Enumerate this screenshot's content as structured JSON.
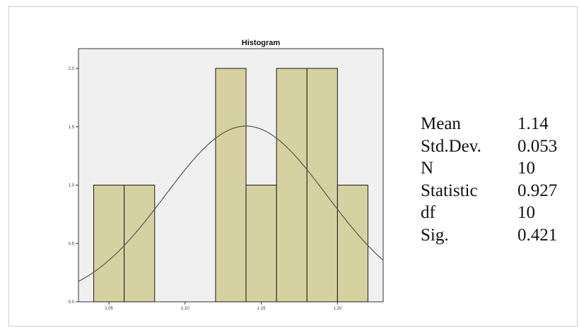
{
  "chart_data": {
    "type": "bar",
    "title": "Histogram",
    "xlabel": "",
    "ylabel": "",
    "bins": [
      {
        "x0": 1.04,
        "x1": 1.06,
        "count": 1
      },
      {
        "x0": 1.06,
        "x1": 1.08,
        "count": 1
      },
      {
        "x0": 1.12,
        "x1": 1.14,
        "count": 2
      },
      {
        "x0": 1.14,
        "x1": 1.16,
        "count": 1
      },
      {
        "x0": 1.16,
        "x1": 1.18,
        "count": 2
      },
      {
        "x0": 1.18,
        "x1": 1.2,
        "count": 2
      },
      {
        "x0": 1.2,
        "x1": 1.22,
        "count": 1
      }
    ],
    "normal_curve": {
      "mean": 1.14,
      "sd": 0.053,
      "n": 10,
      "bin_width": 0.02
    },
    "xlim": [
      1.03,
      1.23
    ],
    "ylim": [
      0,
      2.0
    ],
    "xticks": [
      {
        "value": 1.05,
        "label": "1.05"
      },
      {
        "value": 1.1,
        "label": "1.10"
      },
      {
        "value": 1.15,
        "label": "1.15"
      },
      {
        "value": 1.2,
        "label": "1.20"
      }
    ],
    "yticks": [
      {
        "value": 0.0,
        "label": "0.0"
      },
      {
        "value": 0.5,
        "label": "0.5"
      },
      {
        "value": 1.0,
        "label": "1.0"
      },
      {
        "value": 1.5,
        "label": "1.5"
      },
      {
        "value": 2.0,
        "label": "2.0"
      }
    ],
    "grid": false,
    "colors": {
      "bar_fill": "#d6d1a0",
      "bar_stroke": "#1a1a1a",
      "plot_background": "#f0f0f0",
      "curve": "#555555"
    }
  },
  "stats": [
    {
      "label": "Mean",
      "value": "1.14"
    },
    {
      "label": "Std.Dev.",
      "value": "0.053"
    },
    {
      "label": "N",
      "value": "10"
    },
    {
      "label": "Statistic",
      "value": "0.927"
    },
    {
      "label": "df",
      "value": "10"
    },
    {
      "label": "Sig.",
      "value": "0.421"
    }
  ]
}
